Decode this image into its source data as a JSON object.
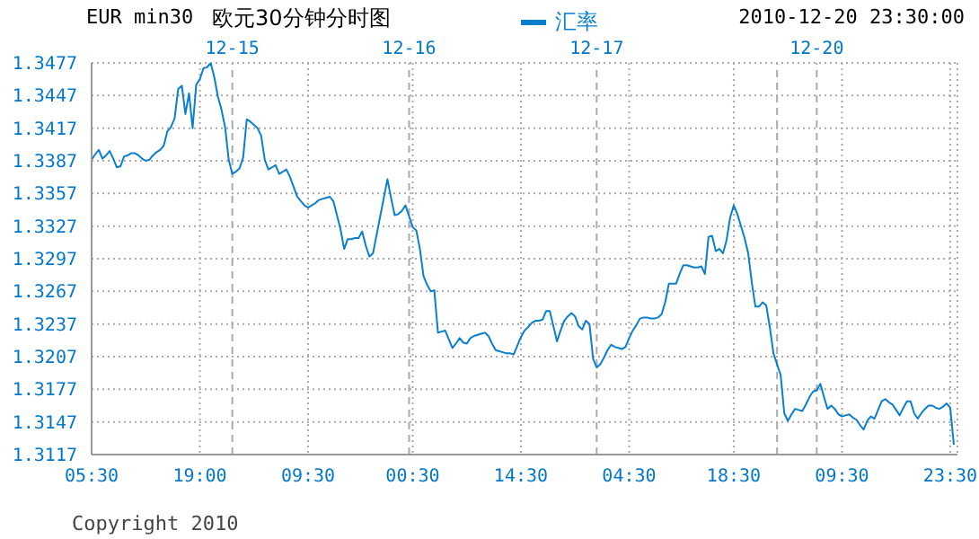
{
  "chart_data": {
    "type": "line",
    "title": "欧元30分钟分时图",
    "subtitle": "EUR min30",
    "annotations": [
      "2010-12-20 23:30:00",
      "Copyright 2010",
      "12-15",
      "12-16",
      "12-17",
      "12-20"
    ],
    "legend": "top",
    "grid": true,
    "marker": "none",
    "line_style": "solid",
    "categories": [
      "05:30",
      null,
      null,
      null,
      null,
      null,
      null,
      null,
      null,
      null,
      null,
      null,
      null,
      null,
      null,
      null,
      null,
      null,
      null,
      null,
      null,
      null,
      null,
      null,
      null,
      null,
      null,
      null,
      null,
      null,
      "19:00",
      null,
      null,
      null,
      null,
      null,
      null,
      null,
      null,
      null,
      null,
      null,
      null,
      null,
      null,
      null,
      null,
      null,
      null,
      null,
      null,
      null,
      null,
      null,
      null,
      null,
      null,
      null,
      null,
      null,
      "09:30",
      null,
      null,
      null,
      null,
      null,
      null,
      null,
      null,
      null,
      null,
      null,
      null,
      null,
      null,
      null,
      null,
      null,
      null,
      null,
      null,
      null,
      null,
      null,
      null,
      null,
      null,
      null,
      null,
      "00:30",
      null,
      null,
      null,
      null,
      null,
      null,
      null,
      null,
      null,
      null,
      null,
      null,
      null,
      null,
      null,
      null,
      null,
      null,
      null,
      null,
      null,
      null,
      null,
      null,
      null,
      null,
      null,
      null,
      null,
      "14:30",
      null,
      null,
      null,
      null,
      null,
      null,
      null,
      null,
      null,
      null,
      null,
      null,
      null,
      null,
      null,
      null,
      null,
      null,
      null,
      null,
      null,
      null,
      null,
      null,
      null,
      null,
      null,
      null,
      null,
      "04:30",
      null,
      null,
      null,
      null,
      null,
      null,
      null,
      null,
      null,
      null,
      null,
      null,
      null,
      null,
      null,
      null,
      null,
      null,
      null,
      null,
      null,
      null,
      null,
      null,
      null,
      null,
      null,
      null,
      "18:30",
      null,
      null,
      null,
      null,
      null,
      null,
      null,
      null,
      null,
      null,
      null,
      null,
      null,
      null,
      null,
      null,
      null,
      null,
      null,
      null,
      null,
      null,
      null,
      null,
      null,
      null,
      null,
      null,
      null,
      "09:30",
      null,
      null,
      null,
      null,
      null,
      null,
      null,
      null,
      null,
      null,
      null,
      null,
      null,
      null,
      null,
      null,
      null,
      null,
      null,
      null,
      null,
      null,
      null,
      null,
      null,
      null,
      null,
      null,
      null,
      "23:30",
      null
    ],
    "ylim": [
      1.3117,
      1.3477
    ],
    "yticks": [
      1.3117,
      1.3147,
      1.3177,
      1.3207,
      1.3237,
      1.3267,
      1.3297,
      1.3327,
      1.3357,
      1.3387,
      1.3417,
      1.3447,
      1.3477
    ],
    "series": [
      {
        "name": "汇率",
        "color": "#0a7fd0",
        "values": [
          1.3388,
          1.3393,
          1.3397,
          1.3389,
          1.3392,
          1.3396,
          1.3389,
          1.3381,
          1.3382,
          1.3391,
          1.3392,
          1.3394,
          1.3394,
          1.3392,
          1.3389,
          1.3387,
          1.3388,
          1.3392,
          1.3395,
          1.3397,
          1.3401,
          1.3414,
          1.3418,
          1.3426,
          1.3453,
          1.3456,
          1.343,
          1.3449,
          1.3417,
          1.3457,
          1.3462,
          1.3472,
          1.3473,
          1.3477,
          1.3464,
          1.3446,
          1.3434,
          1.3418,
          1.3388,
          1.3375,
          1.3377,
          1.338,
          1.339,
          1.3425,
          1.3423,
          1.342,
          1.3417,
          1.341,
          1.3388,
          1.3379,
          1.3381,
          1.3383,
          1.3375,
          1.3377,
          1.3379,
          1.3372,
          1.3363,
          1.3354,
          1.335,
          1.3346,
          1.3344,
          1.3346,
          1.3348,
          1.3351,
          1.3352,
          1.3353,
          1.3354,
          1.335,
          1.3337,
          1.3324,
          1.3306,
          1.3315,
          1.3315,
          1.3316,
          1.3316,
          1.3322,
          1.3309,
          1.3299,
          1.3302,
          1.3319,
          1.3336,
          1.3353,
          1.337,
          1.3353,
          1.3337,
          1.3338,
          1.3341,
          1.3346,
          1.3336,
          1.3326,
          1.3323,
          1.3306,
          1.3281,
          1.3273,
          1.3267,
          1.3268,
          1.3229,
          1.323,
          1.3231,
          1.3223,
          1.3215,
          1.3219,
          1.3224,
          1.322,
          1.3219,
          1.3224,
          1.3226,
          1.3227,
          1.3228,
          1.3229,
          1.3226,
          1.3219,
          1.3213,
          1.3212,
          1.3211,
          1.321,
          1.321,
          1.3209,
          1.3217,
          1.3225,
          1.3231,
          1.3234,
          1.3238,
          1.324,
          1.324,
          1.3241,
          1.3249,
          1.3249,
          1.3235,
          1.3221,
          1.3231,
          1.324,
          1.3244,
          1.3247,
          1.3244,
          1.3235,
          1.3232,
          1.324,
          1.3237,
          1.3205,
          1.3197,
          1.32,
          1.3206,
          1.3213,
          1.3218,
          1.3216,
          1.3215,
          1.3214,
          1.3216,
          1.3224,
          1.3231,
          1.3236,
          1.3242,
          1.3243,
          1.3243,
          1.3242,
          1.3242,
          1.3243,
          1.3246,
          1.3257,
          1.3274,
          1.3274,
          1.3274,
          1.3283,
          1.3291,
          1.3291,
          1.329,
          1.3289,
          1.3289,
          1.329,
          1.3283,
          1.3317,
          1.3318,
          1.3304,
          1.3306,
          1.3302,
          1.3314,
          1.3335,
          1.3346,
          1.3338,
          1.3327,
          1.3316,
          1.3302,
          1.3275,
          1.3253,
          1.3253,
          1.3257,
          1.3254,
          1.3234,
          1.321,
          1.32,
          1.319,
          1.3155,
          1.3148,
          1.3154,
          1.3159,
          1.3158,
          1.3157,
          1.3163,
          1.317,
          1.3175,
          1.3176,
          1.3182,
          1.317,
          1.3159,
          1.3162,
          1.3159,
          1.3154,
          1.3152,
          1.3153,
          1.3154,
          1.3151,
          1.3149,
          1.3144,
          1.314,
          1.3148,
          1.3152,
          1.315,
          1.3158,
          1.3166,
          1.3168,
          1.3165,
          1.3163,
          1.3158,
          1.3153,
          1.316,
          1.3166,
          1.3166,
          1.3155,
          1.315,
          1.3155,
          1.3159,
          1.3162,
          1.3162,
          1.316,
          1.3159,
          1.3161,
          1.3164,
          1.316,
          1.3126
        ]
      }
    ]
  }
}
